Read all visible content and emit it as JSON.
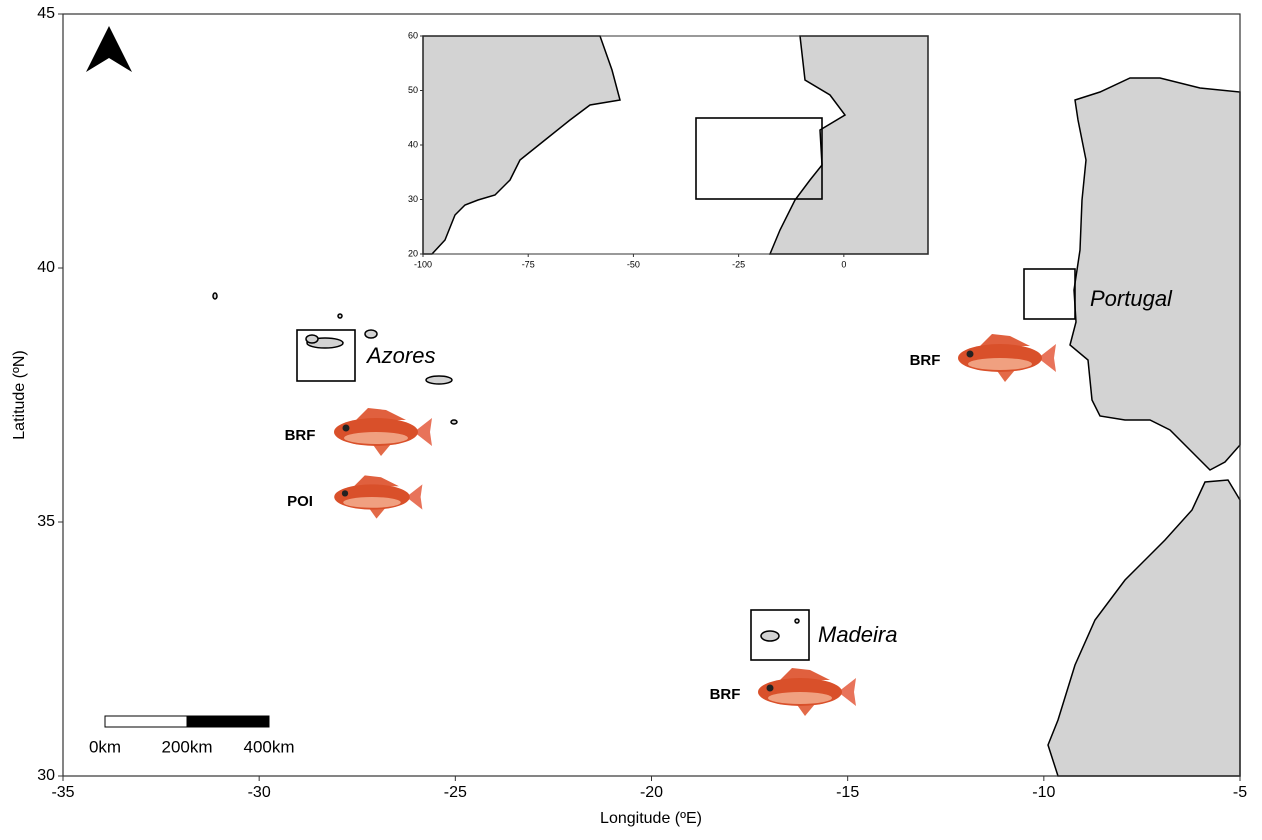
{
  "map": {
    "xlabel": "Longitude (ºE)",
    "ylabel": "Latitude (ºN)",
    "xlim": [
      -35,
      -5
    ],
    "ylim": [
      30,
      45
    ],
    "xticks": [
      -35,
      -30,
      -25,
      -20,
      -15,
      -10,
      -5
    ],
    "yticks": [
      30,
      35,
      40,
      45
    ],
    "regions": [
      "Azores",
      "Portugal",
      "Madeira"
    ],
    "species_labels": [
      "BRF",
      "POI",
      "BRF",
      "BRF"
    ]
  },
  "inset": {
    "xlim": [
      -100,
      20
    ],
    "ylim": [
      20,
      60
    ],
    "xticks": [
      -100,
      -75,
      -50,
      -25,
      0
    ],
    "yticks": [
      20,
      30,
      40,
      50,
      60
    ]
  },
  "scale_bar": {
    "labels": [
      "0km",
      "200km",
      "400km"
    ]
  }
}
